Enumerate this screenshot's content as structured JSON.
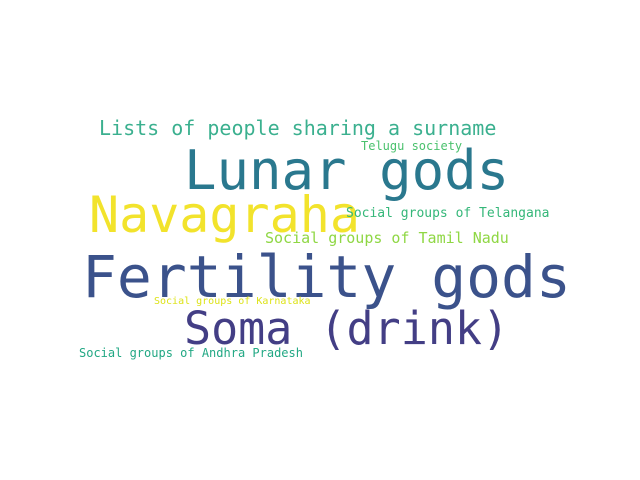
{
  "word_cloud": {
    "words": [
      {
        "id": "w-lists",
        "text": "Lists of people sharing a surname",
        "color": "#3bb08f"
      },
      {
        "id": "w-lunar",
        "text": "Lunar gods",
        "color": "#2a788e"
      },
      {
        "id": "w-telugu",
        "text": "Telugu society",
        "color": "#4ac16d"
      },
      {
        "id": "w-navagraha",
        "text": "Navagraha",
        "color": "#f2e32c"
      },
      {
        "id": "w-telangana",
        "text": "Social groups of Telangana",
        "color": "#35b779"
      },
      {
        "id": "w-tamil",
        "text": "Social groups of Tamil Nadu",
        "color": "#8fd744"
      },
      {
        "id": "w-fertility",
        "text": "Fertility gods",
        "color": "#3b528b"
      },
      {
        "id": "w-karnataka",
        "text": "Social groups of Karnataka",
        "color": "#dde318"
      },
      {
        "id": "w-soma",
        "text": "Soma (drink)",
        "color": "#433e85"
      },
      {
        "id": "w-andhra",
        "text": "Social groups of Andhra Pradesh",
        "color": "#22a884"
      }
    ]
  }
}
